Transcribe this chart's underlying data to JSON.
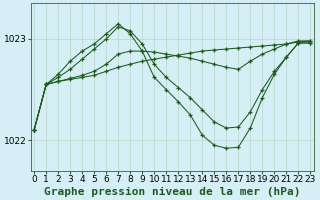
{
  "title": "Graphe pression niveau de la mer (hPa)",
  "background_color": "#d6eef5",
  "plot_bg_color": "#d6eef5",
  "grid_color": "#b8d8c8",
  "line_color": "#1a5c1a",
  "marker_color": "#1a5c1a",
  "ylim": [
    1021.7,
    1023.35
  ],
  "yticks": [
    1022,
    1023
  ],
  "xlim": [
    -0.3,
    23.3
  ],
  "xticks": [
    0,
    1,
    2,
    3,
    4,
    5,
    6,
    7,
    8,
    9,
    10,
    11,
    12,
    13,
    14,
    15,
    16,
    17,
    18,
    19,
    20,
    21,
    22,
    23
  ],
  "series": [
    [
      1022.1,
      1022.55,
      1022.58,
      1022.6,
      1022.62,
      1022.64,
      1022.68,
      1022.72,
      1022.75,
      1022.78,
      1022.8,
      1022.82,
      1022.84,
      1022.86,
      1022.88,
      1022.89,
      1022.9,
      1022.91,
      1022.92,
      1022.93,
      1022.94,
      1022.95,
      1022.97,
      1022.98
    ],
    [
      1022.1,
      1022.55,
      1022.58,
      1022.61,
      1022.64,
      1022.68,
      1022.75,
      1022.85,
      1022.88,
      1022.88,
      1022.87,
      1022.85,
      1022.83,
      1022.81,
      1022.78,
      1022.75,
      1022.72,
      1022.7,
      1022.78,
      1022.85,
      1022.9,
      1022.95,
      1022.98,
      1022.98
    ],
    [
      1022.1,
      1022.55,
      1022.62,
      1022.7,
      1022.8,
      1022.9,
      1023.0,
      1023.12,
      1023.08,
      1022.95,
      1022.75,
      1022.62,
      1022.52,
      1022.42,
      1022.3,
      1022.18,
      1022.12,
      1022.13,
      1022.28,
      1022.5,
      1022.68,
      1022.82,
      1022.96,
      1022.96
    ],
    [
      1022.1,
      1022.55,
      1022.65,
      1022.78,
      1022.88,
      1022.95,
      1023.05,
      1023.15,
      1023.05,
      1022.88,
      1022.62,
      1022.5,
      1022.38,
      1022.25,
      1022.05,
      1021.95,
      1021.92,
      1021.93,
      1022.12,
      1022.42,
      1022.65,
      1022.82,
      1022.96,
      1022.96
    ]
  ],
  "title_fontsize": 8,
  "tick_fontsize": 6.5
}
